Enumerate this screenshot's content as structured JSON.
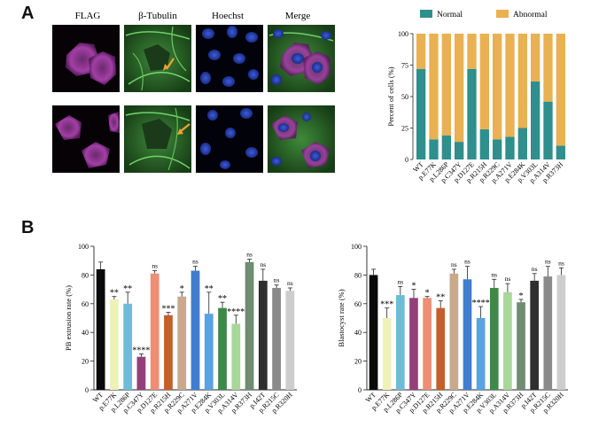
{
  "figure": {
    "panel_a_label": "A",
    "panel_b_label": "B",
    "microscopy": {
      "column_titles": [
        "FLAG",
        "β-Tubulin",
        "Hoechst",
        "Merge"
      ]
    }
  },
  "chart_data": [
    {
      "type": "bar",
      "stacked": true,
      "categories": [
        "WT",
        "p.E77K",
        "p.L286P",
        "p.C347Y",
        "p.D127E",
        "p.R215H",
        "p.R229C",
        "p.A271V",
        "p.E284K",
        "p.V303L",
        "p.A314V",
        "p.R373H"
      ],
      "series": [
        {
          "name": "Normal",
          "color": "#2f8f8c",
          "values": [
            72,
            16,
            19,
            14,
            72,
            24,
            16,
            18,
            25,
            62,
            46,
            11
          ]
        },
        {
          "name": "Abnormal",
          "color": "#e9b152",
          "values": [
            28,
            84,
            81,
            86,
            28,
            76,
            84,
            82,
            75,
            38,
            54,
            89
          ]
        }
      ],
      "ylabel": "Percent of cells (%)",
      "ylim": [
        0,
        100
      ],
      "yticks": [
        0,
        25,
        50,
        75,
        100
      ],
      "legend": "top"
    },
    {
      "type": "bar",
      "categories": [
        "WT",
        "p.E77K",
        "p.L286P",
        "p.C347Y",
        "p.D127E",
        "p.R215H",
        "p.R229C",
        "p.A271V",
        "p.E284K",
        "p.V303L",
        "p.A314V",
        "p.R373H",
        "p.I42T",
        "p.R215C",
        "p.R320H"
      ],
      "values": [
        84,
        63,
        60,
        23,
        81,
        52,
        65,
        83,
        53,
        57,
        46,
        89,
        76,
        71,
        69
      ],
      "errors": [
        5,
        2,
        8,
        2,
        2,
        2,
        3,
        3,
        15,
        4,
        6,
        2,
        8,
        2,
        2
      ],
      "colors": [
        "#0a0a0a",
        "#eff2b8",
        "#6fbcd8",
        "#93407a",
        "#ef8e73",
        "#c55f28",
        "#c8a98a",
        "#3f7ecf",
        "#5aa2e0",
        "#3c8a48",
        "#a8d79a",
        "#6e8d72",
        "#2f2f2f",
        "#8a8a8a",
        "#cdcdcd"
      ],
      "significance": [
        "",
        "**",
        "**",
        "****",
        "ns",
        "***",
        "*",
        "ns",
        "**",
        "**",
        "****",
        "ns",
        "ns",
        "ns",
        "ns"
      ],
      "ylabel": "PB extrusion rate (%)",
      "ylim": [
        0,
        100
      ],
      "yticks": [
        0,
        20,
        40,
        60,
        80,
        100
      ]
    },
    {
      "type": "bar",
      "categories": [
        "WT",
        "p.E77K",
        "p.L286P",
        "p.C347Y",
        "p.D127E",
        "p.R215H",
        "p.R229C",
        "p.A271V",
        "p.E284K",
        "p.V303L",
        "p.A314V",
        "p.R373H",
        "p.I42T",
        "p.R215C",
        "p.R320H"
      ],
      "values": [
        80,
        50,
        66,
        64,
        64,
        57,
        81,
        77,
        50,
        71,
        68,
        61,
        76,
        79,
        80
      ],
      "errors": [
        4,
        7,
        6,
        6,
        1,
        5,
        3,
        9,
        8,
        6,
        6,
        2,
        5,
        7,
        5
      ],
      "colors": [
        "#0a0a0a",
        "#eff2b8",
        "#6fbcd8",
        "#93407a",
        "#ef8e73",
        "#c55f28",
        "#c8a98a",
        "#3f7ecf",
        "#5aa2e0",
        "#3c8a48",
        "#a8d79a",
        "#6e8d72",
        "#2f2f2f",
        "#8a8a8a",
        "#cdcdcd"
      ],
      "significance": [
        "",
        "***",
        "ns",
        "*",
        "*",
        "**",
        "ns",
        "ns",
        "****",
        "ns",
        "ns",
        "*",
        "ns",
        "ns",
        "ns"
      ],
      "ylabel": "Blastocyst rate (%)",
      "ylim": [
        0,
        100
      ],
      "yticks": [
        0,
        20,
        40,
        60,
        80,
        100
      ]
    }
  ]
}
